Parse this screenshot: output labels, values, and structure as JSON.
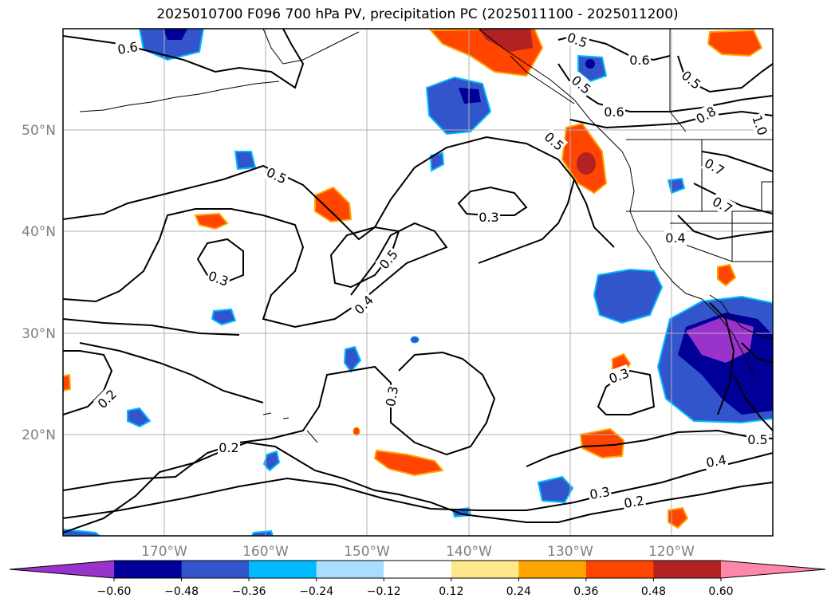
{
  "title": "2025010700 F096 700 hPa PV, precipitation PC (2025011100 - 2025011200)",
  "lat_labels": [
    "50°N",
    "40°N",
    "30°N",
    "20°N"
  ],
  "lon_labels": [
    "170°W",
    "160°W",
    "150°W",
    "140°W",
    "130°W",
    "120°W"
  ],
  "colorbar": {
    "tick_labels": [
      "−0.60",
      "−0.48",
      "−0.36",
      "−0.24",
      "−0.12",
      "0.12",
      "0.24",
      "0.36",
      "0.48",
      "0.60"
    ],
    "colors": [
      "#9933cc",
      "#000099",
      "#3355cc",
      "#00bbff",
      "#aaddff",
      "#ffffff",
      "#ffe88a",
      "#ffa500",
      "#ff4500",
      "#b22222",
      "#ff88aa"
    ]
  },
  "contour_labels": [
    {
      "text": "0.6"
    },
    {
      "text": "0.5"
    },
    {
      "text": "0.6"
    },
    {
      "text": "0.5"
    },
    {
      "text": "0.5"
    },
    {
      "text": "0.6"
    },
    {
      "text": "0.8"
    },
    {
      "text": "1.0"
    },
    {
      "text": "0.5"
    },
    {
      "text": "0.5"
    },
    {
      "text": "0.7"
    },
    {
      "text": "0.7"
    },
    {
      "text": "0.3"
    },
    {
      "text": "0.4"
    },
    {
      "text": "0.3"
    },
    {
      "text": "0.5"
    },
    {
      "text": "0.4"
    },
    {
      "text": "0.3"
    },
    {
      "text": "0.3"
    },
    {
      "text": "0.2"
    },
    {
      "text": "0.2"
    },
    {
      "text": "0.5"
    },
    {
      "text": "0.4"
    },
    {
      "text": "0.3"
    },
    {
      "text": "0.2"
    }
  ]
}
